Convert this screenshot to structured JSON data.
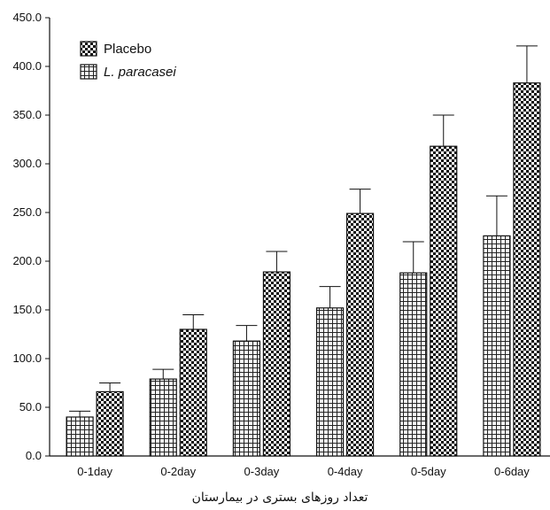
{
  "chart_data": {
    "type": "bar",
    "categories": [
      "0-1day",
      "0-2day",
      "0-3day",
      "0-4day",
      "0-5day",
      "0-6day"
    ],
    "series": [
      {
        "name": "L. paracasei",
        "pattern": "grid",
        "values": [
          40,
          79,
          118,
          152,
          188,
          226
        ],
        "errors": [
          6,
          10,
          16,
          22,
          32,
          41
        ]
      },
      {
        "name": "Placebo",
        "pattern": "checker",
        "values": [
          66,
          130,
          189,
          249,
          318,
          383
        ],
        "errors": [
          9,
          15,
          21,
          25,
          32,
          38
        ]
      }
    ],
    "xlabel": "تعداد روزهای بستری در بیمارستان",
    "ylabel": "",
    "ylim": [
      0,
      450
    ],
    "yticks": [
      "0.0",
      "50.0",
      "100.0",
      "150.0",
      "200.0",
      "250.0",
      "300.0",
      "350.0",
      "400.0",
      "450.0"
    ],
    "legend": {
      "position": "top-left",
      "order": [
        "Placebo",
        "L. paracasei"
      ],
      "italic": [
        "L. paracasei"
      ]
    },
    "grid": false,
    "colors": {
      "ink": "#111111",
      "background": "#ffffff"
    }
  }
}
